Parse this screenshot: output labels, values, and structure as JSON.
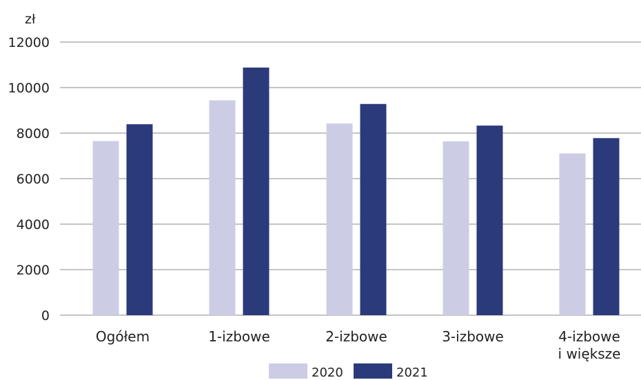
{
  "chart_data": {
    "type": "bar",
    "unit_label": "zł",
    "categories": [
      [
        "Ogółem"
      ],
      [
        "1-izbowe"
      ],
      [
        "2-izbowe"
      ],
      [
        "3-izbowe"
      ],
      [
        "4-izbowe",
        "i większe"
      ]
    ],
    "series": [
      {
        "name": "2020",
        "color": "#cccce4",
        "values": [
          7650,
          9440,
          8420,
          7640,
          7110
        ]
      },
      {
        "name": "2021",
        "color": "#2b3a7b",
        "values": [
          8390,
          10880,
          9280,
          8330,
          7780
        ]
      }
    ],
    "ylim": [
      0,
      12000
    ],
    "yticks": [
      0,
      2000,
      4000,
      6000,
      8000,
      10000,
      12000
    ],
    "grid": true,
    "legend_position": "bottom"
  }
}
